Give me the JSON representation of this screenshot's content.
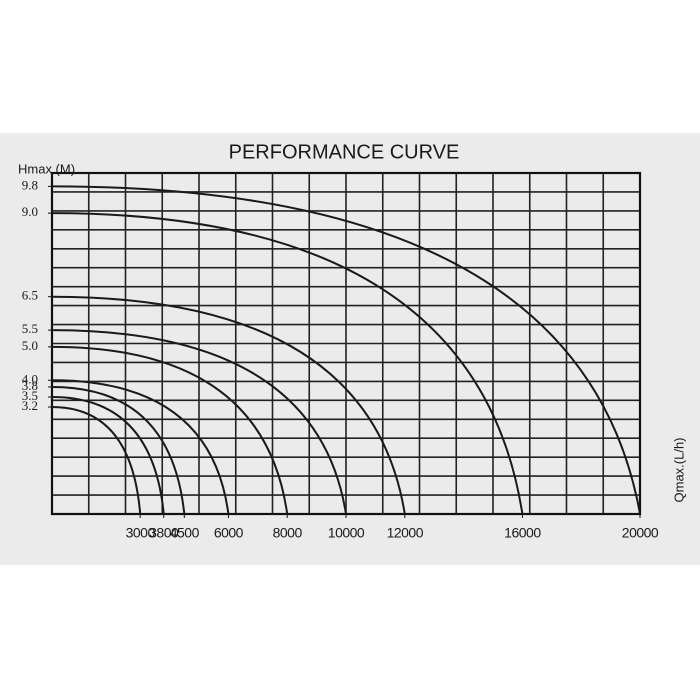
{
  "chart_data": {
    "type": "line",
    "title": "PERFORMANCE CURVE",
    "y_label": "Hmax.(M)",
    "x_label": "Qmax.(L/h)",
    "xlim": [
      0,
      20000
    ],
    "ylim": [
      0,
      10.2
    ],
    "xticks": [
      3000,
      3800,
      4500,
      6000,
      8000,
      10000,
      12000,
      16000,
      20000
    ],
    "yticks": [
      9.8,
      {
        "value": 9,
        "label": "9.0"
      },
      6.5,
      5.5,
      {
        "value": 5,
        "label": "5.0"
      },
      {
        "value": 4,
        "label": "4.0"
      },
      3.8,
      3.5,
      3.2
    ],
    "color": "#1a1a1a",
    "series": [
      {
        "x": [
          0,
          20000
        ],
        "values": [
          9.8,
          0
        ]
      },
      {
        "x": [
          0,
          16000
        ],
        "values": [
          9,
          0
        ]
      },
      {
        "x": [
          0,
          12000
        ],
        "values": [
          6.5,
          0
        ]
      },
      {
        "x": [
          0,
          10000
        ],
        "values": [
          5.5,
          0
        ]
      },
      {
        "x": [
          0,
          8000
        ],
        "values": [
          5,
          0
        ]
      },
      {
        "x": [
          0,
          6000
        ],
        "values": [
          4,
          0
        ]
      },
      {
        "x": [
          0,
          4500
        ],
        "values": [
          3.8,
          0
        ]
      },
      {
        "x": [
          0,
          3800
        ],
        "values": [
          3.5,
          0
        ]
      },
      {
        "x": [
          0,
          3000
        ],
        "values": [
          3.2,
          0
        ]
      }
    ]
  }
}
